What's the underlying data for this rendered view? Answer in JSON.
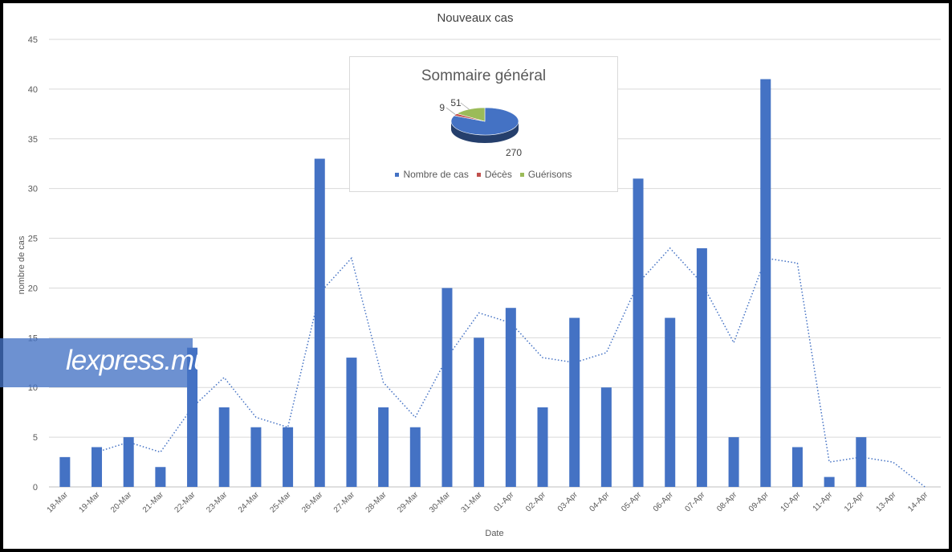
{
  "chart_data": {
    "type": "bar",
    "title": "Nouveaux cas",
    "xlabel": "Date",
    "ylabel": "nombre de cas",
    "ylim": [
      0,
      45
    ],
    "yticks": [
      0,
      5,
      10,
      15,
      20,
      25,
      30,
      35,
      40,
      45
    ],
    "grid": true,
    "categories": [
      "18-Mar",
      "19-Mar",
      "20-Mar",
      "21-Mar",
      "22-Mar",
      "23-Mar",
      "24-Mar",
      "25-Mar",
      "26-Mar",
      "27-Mar",
      "28-Mar",
      "29-Mar",
      "30-Mar",
      "31-Mar",
      "01-Apr",
      "02-Apr",
      "03-Apr",
      "04-Apr",
      "05-Apr",
      "06-Apr",
      "07-Apr",
      "08-Apr",
      "09-Apr",
      "10-Apr",
      "11-Apr",
      "12-Apr",
      "13-Apr",
      "14-Apr"
    ],
    "series": [
      {
        "values": [
          3,
          4,
          5,
          2,
          14,
          8,
          6,
          6,
          33,
          13,
          8,
          6,
          20,
          15,
          18,
          8,
          17,
          10,
          31,
          17,
          24,
          5,
          41,
          4,
          1,
          5,
          0,
          0
        ],
        "color": "#4472C4"
      }
    ],
    "trendline": {
      "type": "moving-average",
      "period": 2,
      "values": [
        null,
        3.5,
        4.5,
        3.5,
        8,
        11,
        7,
        6,
        19.5,
        23,
        10.5,
        7,
        13,
        17.5,
        16.5,
        13,
        12.5,
        13.5,
        20.5,
        24,
        20.5,
        14.5,
        23,
        22.5,
        2.5,
        3,
        2.5,
        0
      ],
      "color": "#4472C4",
      "style": "dotted"
    }
  },
  "summary": {
    "title": "Sommaire général",
    "chart_data": {
      "type": "pie",
      "labels": [
        "Nombre de cas",
        "Décès",
        "Guérisons"
      ],
      "values": [
        270,
        9,
        51
      ],
      "colors": [
        "#4472C4",
        "#C0504D",
        "#9BBB59"
      ],
      "legend": "bottom"
    }
  },
  "watermark": {
    "text": "lexpress.mu"
  }
}
